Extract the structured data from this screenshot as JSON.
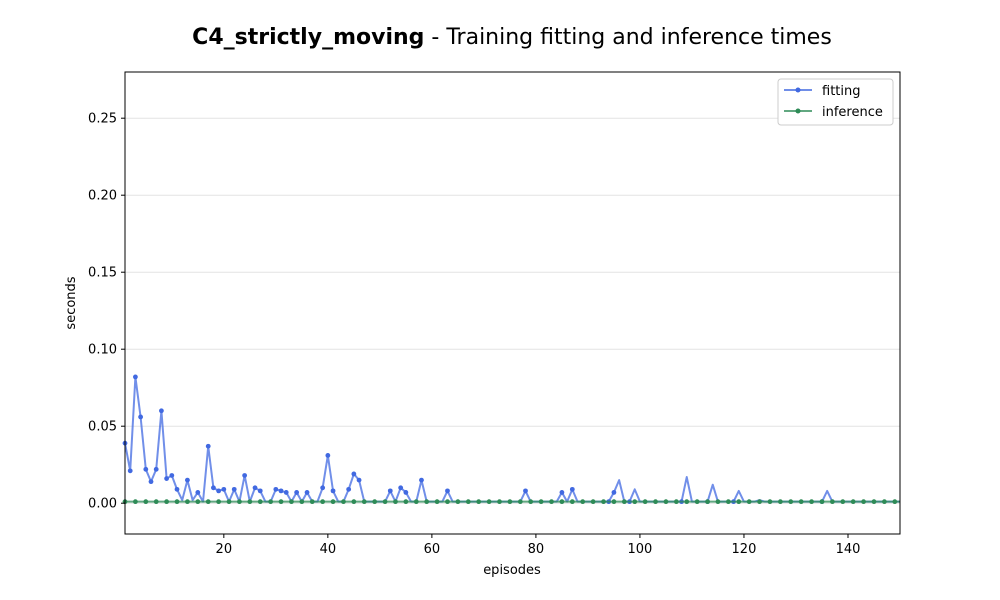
{
  "chart_data": {
    "type": "line",
    "title_bold": "C4_strictly_moving",
    "title_rest": " - Training fitting and inference times",
    "xlabel": "episodes",
    "ylabel": "seconds",
    "xlim": [
      1,
      150
    ],
    "ylim": [
      -0.02,
      0.28
    ],
    "xticks": [
      20,
      40,
      60,
      80,
      100,
      120,
      140
    ],
    "yticks": [
      0.0,
      0.05,
      0.1,
      0.15,
      0.2,
      0.25
    ],
    "ytick_labels": [
      "0.00",
      "0.05",
      "0.10",
      "0.15",
      "0.20",
      "0.25"
    ],
    "grid": "horizontal",
    "legend": "top-right",
    "series": [
      {
        "name": "fitting",
        "color": "#4169e1",
        "x": [
          1,
          2,
          3,
          4,
          5,
          6,
          7,
          8,
          9,
          10,
          11,
          12,
          13,
          14,
          15,
          16,
          17,
          18,
          19,
          20,
          21,
          22,
          23,
          24,
          25,
          26,
          27,
          28,
          29,
          30,
          31,
          32,
          33,
          34,
          35,
          36,
          37,
          38,
          39,
          40,
          41,
          42,
          43,
          44,
          45,
          46,
          47,
          48,
          49,
          50,
          51,
          52,
          53,
          54,
          55,
          56,
          57,
          58,
          59,
          60,
          61,
          62,
          63,
          64,
          65,
          66,
          67,
          68,
          69,
          70,
          71,
          72,
          73,
          74,
          75,
          76,
          77,
          78,
          79,
          80,
          81,
          82,
          83,
          84,
          85,
          86,
          87,
          88,
          89,
          90,
          91,
          92,
          93,
          94,
          95,
          96,
          97,
          98,
          99,
          100,
          101,
          102,
          103,
          104,
          105,
          106,
          107,
          108,
          109,
          110,
          111,
          112,
          113,
          114,
          115,
          116,
          117,
          118,
          119,
          120,
          121,
          122,
          123,
          124,
          125,
          126,
          127,
          128,
          129,
          130,
          131,
          132,
          133,
          134,
          135,
          136,
          137,
          138,
          139,
          140,
          141,
          142,
          143,
          144,
          145,
          146,
          147,
          148,
          149,
          150
        ],
        "values": [
          0.039,
          0.021,
          0.082,
          0.056,
          0.022,
          0.014,
          0.022,
          0.06,
          0.016,
          0.018,
          0.009,
          0.002,
          0.015,
          0.002,
          0.007,
          0.001,
          0.037,
          0.01,
          0.008,
          0.009,
          0.001,
          0.009,
          0.001,
          0.018,
          0.001,
          0.01,
          0.008,
          0.001,
          0.001,
          0.009,
          0.008,
          0.007,
          0.001,
          0.007,
          0.001,
          0.007,
          0.001,
          0.001,
          0.01,
          0.031,
          0.008,
          0.001,
          0.001,
          0.009,
          0.019,
          0.015,
          0.001,
          0.001,
          0.001,
          0.001,
          0.001,
          0.008,
          0.001,
          0.01,
          0.007,
          0.001,
          0.001,
          0.015,
          0.001,
          0.001,
          0.001,
          0.001,
          0.008,
          0.001,
          0.001,
          0.001,
          0.001,
          0.001,
          0.001,
          0.001,
          0.001,
          0.001,
          0.001,
          0.001,
          0.001,
          0.001,
          0.001,
          0.008,
          0.001,
          0.001,
          0.001,
          0.001,
          0.001,
          0.001,
          0.007,
          0.001,
          0.009,
          0.001,
          0.001,
          0.001,
          0.001,
          0.001,
          0.001,
          0.001,
          0.007,
          0.015,
          0.001,
          0.001,
          0.009,
          0.001,
          0.001,
          0.001,
          0.001,
          0.001,
          0.001,
          0.001,
          0.001,
          0.001,
          0.017,
          0.001,
          0.001,
          0.001,
          0.001,
          0.012,
          0.001,
          0.001,
          0.001,
          0.001,
          0.008,
          0.001,
          0.001,
          0.001,
          0.002,
          0.001,
          0.001,
          0.001,
          0.001,
          0.001,
          0.001,
          0.001,
          0.001,
          0.001,
          0.001,
          0.001,
          0.001,
          0.008,
          0.001,
          0.001,
          0.001,
          0.001,
          0.001,
          0.001,
          0.001,
          0.001,
          0.001,
          0.001,
          0.001,
          0.001,
          0.001,
          0.001
        ],
        "marker_x": [
          1,
          2,
          3,
          4,
          5,
          6,
          7,
          8,
          9,
          10,
          11,
          13,
          15,
          17,
          18,
          19,
          20,
          22,
          24,
          26,
          27,
          30,
          31,
          32,
          34,
          36,
          39,
          40,
          41,
          44,
          45,
          46,
          52,
          54,
          55,
          58,
          63,
          78,
          85,
          87,
          94,
          95,
          98,
          108,
          113,
          118,
          135
        ]
      },
      {
        "name": "inference",
        "color": "#2e8b57",
        "x": [
          1,
          150
        ],
        "values": [
          0.001,
          0.001
        ],
        "marker_x": [
          1,
          3,
          5,
          7,
          9,
          11,
          13,
          15,
          17,
          19,
          21,
          23,
          25,
          27,
          29,
          31,
          33,
          35,
          37,
          39,
          41,
          43,
          45,
          47,
          49,
          51,
          53,
          55,
          57,
          59,
          61,
          63,
          65,
          67,
          69,
          71,
          73,
          75,
          77,
          79,
          81,
          83,
          85,
          87,
          89,
          91,
          93,
          95,
          97,
          99,
          101,
          103,
          105,
          107,
          109,
          111,
          113,
          115,
          117,
          119,
          121,
          123,
          125,
          127,
          129,
          131,
          133,
          135,
          137,
          139,
          141,
          143,
          145,
          147,
          149
        ]
      }
    ]
  }
}
